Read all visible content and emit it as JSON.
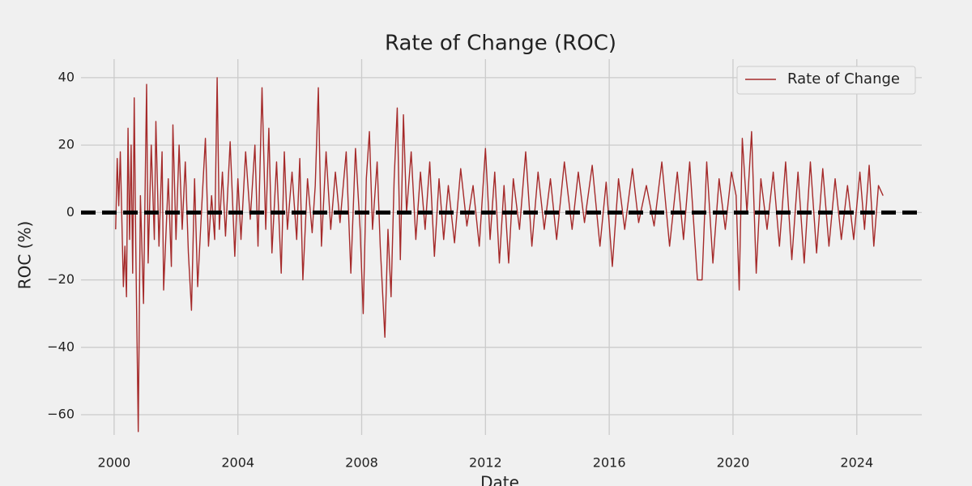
{
  "chart_data": {
    "type": "line",
    "title": "Rate of Change (ROC)",
    "x_label": "Date",
    "y_label": "ROC (%)",
    "x": [
      2000.05,
      2000.1,
      2000.15,
      2000.2,
      2000.3,
      2000.35,
      2000.4,
      2000.45,
      2000.5,
      2000.55,
      2000.6,
      2000.65,
      2000.7,
      2000.78,
      2000.85,
      2000.95,
      2001.05,
      2001.1,
      2001.2,
      2001.3,
      2001.35,
      2001.45,
      2001.55,
      2001.6,
      2001.75,
      2001.85,
      2001.9,
      2002.0,
      2002.1,
      2002.2,
      2002.3,
      2002.4,
      2002.5,
      2002.6,
      2002.7,
      2002.85,
      2002.95,
      2003.05,
      2003.15,
      2003.25,
      2003.33,
      2003.4,
      2003.5,
      2003.6,
      2003.75,
      2003.9,
      2004.0,
      2004.1,
      2004.25,
      2004.4,
      2004.55,
      2004.65,
      2004.78,
      2004.9,
      2005.0,
      2005.1,
      2005.25,
      2005.4,
      2005.5,
      2005.6,
      2005.75,
      2005.9,
      2006.0,
      2006.1,
      2006.25,
      2006.4,
      2006.5,
      2006.6,
      2006.7,
      2006.85,
      2007.0,
      2007.15,
      2007.3,
      2007.5,
      2007.65,
      2007.8,
      2007.95,
      2008.05,
      2008.15,
      2008.25,
      2008.35,
      2008.5,
      2008.6,
      2008.75,
      2008.85,
      2008.95,
      2009.05,
      2009.15,
      2009.25,
      2009.35,
      2009.45,
      2009.6,
      2009.75,
      2009.9,
      2010.05,
      2010.2,
      2010.35,
      2010.5,
      2010.65,
      2010.8,
      2011.0,
      2011.2,
      2011.4,
      2011.6,
      2011.8,
      2012.0,
      2012.15,
      2012.3,
      2012.45,
      2012.6,
      2012.75,
      2012.9,
      2013.1,
      2013.3,
      2013.5,
      2013.7,
      2013.9,
      2014.1,
      2014.3,
      2014.55,
      2014.8,
      2015.0,
      2015.2,
      2015.45,
      2015.7,
      2015.9,
      2016.1,
      2016.3,
      2016.5,
      2016.75,
      2016.95,
      2017.2,
      2017.45,
      2017.7,
      2017.95,
      2018.2,
      2018.4,
      2018.6,
      2018.85,
      2019.0,
      2019.15,
      2019.35,
      2019.55,
      2019.75,
      2019.95,
      2020.1,
      2020.2,
      2020.3,
      2020.45,
      2020.6,
      2020.75,
      2020.9,
      2021.1,
      2021.3,
      2021.5,
      2021.7,
      2021.9,
      2022.1,
      2022.3,
      2022.5,
      2022.7,
      2022.9,
      2023.1,
      2023.3,
      2023.5,
      2023.7,
      2023.9,
      2024.1,
      2024.25,
      2024.4,
      2024.55,
      2024.7,
      2024.85
    ],
    "series": [
      {
        "name": "Rate of Change",
        "color": "#a52a2a",
        "values": [
          -5,
          16,
          2,
          18,
          -22,
          -10,
          -25,
          25,
          -8,
          20,
          -18,
          34,
          -10,
          -65,
          5,
          -27,
          38,
          -15,
          20,
          -8,
          27,
          -10,
          18,
          -23,
          10,
          -16,
          26,
          -8,
          20,
          -5,
          15,
          -12,
          -29,
          10,
          -22,
          5,
          22,
          -10,
          5,
          -8,
          40,
          -5,
          12,
          -7,
          21,
          -13,
          10,
          -8,
          18,
          -2,
          20,
          -10,
          37,
          -5,
          25,
          -12,
          15,
          -18,
          18,
          -5,
          12,
          -8,
          16,
          -20,
          10,
          -6,
          8,
          37,
          -10,
          18,
          -5,
          12,
          -3,
          18,
          -18,
          19,
          -5,
          -30,
          10,
          24,
          -5,
          15,
          -10,
          -37,
          -5,
          -25,
          10,
          31,
          -14,
          29,
          0,
          18,
          -8,
          12,
          -5,
          15,
          -13,
          10,
          -8,
          8,
          -9,
          13,
          -4,
          8,
          -10,
          19,
          -8,
          12,
          -15,
          8,
          -15,
          10,
          -5,
          18,
          -10,
          12,
          -5,
          10,
          -8,
          15,
          -5,
          12,
          -3,
          14,
          -10,
          9,
          -16,
          10,
          -5,
          13,
          -3,
          8,
          -4,
          15,
          -10,
          12,
          -8,
          15,
          -20,
          -20,
          15,
          -15,
          10,
          -5,
          12,
          5,
          -23,
          22,
          0,
          24,
          -18,
          10,
          -5,
          12,
          -10,
          15,
          -14,
          12,
          -15,
          15,
          -12,
          13,
          -10,
          10,
          -8,
          8,
          -8,
          12,
          -5,
          14,
          -10,
          8,
          5
        ]
      }
    ],
    "xlim": [
      1998.93,
      2026.1
    ],
    "xticks": [
      2000,
      2004,
      2008,
      2012,
      2016,
      2020,
      2024
    ],
    "ylim": [
      -66,
      45.5
    ],
    "yticks": [
      {
        "value": -60,
        "label": "−60"
      },
      {
        "value": -40,
        "label": "−40"
      },
      {
        "value": -20,
        "label": "−20"
      },
      0,
      20,
      40
    ],
    "hline": {
      "y": 0,
      "color": "#000000"
    },
    "grid": true,
    "legend": "upper right"
  }
}
